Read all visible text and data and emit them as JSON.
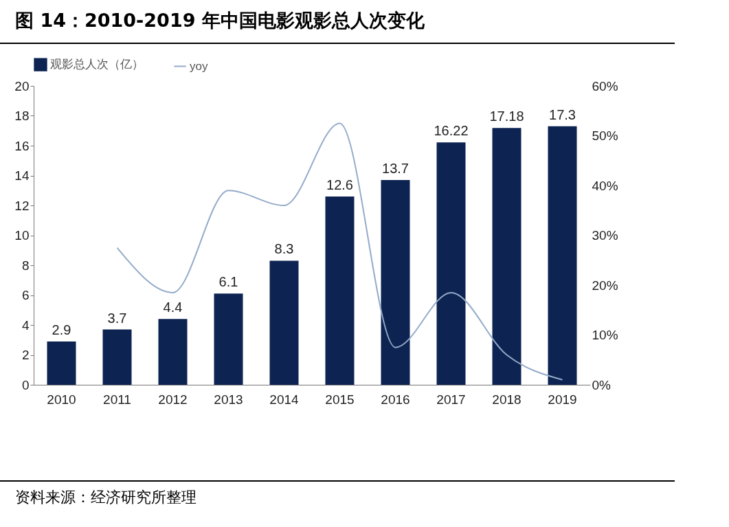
{
  "chart_data": {
    "type": "bar",
    "title": "图 14：2010-2019 年中国电影观影总人次变化",
    "categories": [
      "2010",
      "2011",
      "2012",
      "2013",
      "2014",
      "2015",
      "2016",
      "2017",
      "2018",
      "2019"
    ],
    "series": [
      {
        "name": "观影总人次（亿）",
        "color": "#0d2352",
        "values": [
          2.9,
          3.7,
          4.4,
          6.1,
          8.3,
          12.6,
          13.7,
          16.22,
          17.18,
          17.3
        ],
        "value_labels": [
          "2.9",
          "3.7",
          "4.4",
          "6.1",
          "8.3",
          "12.6",
          "13.7",
          "16.22",
          "17.18",
          "17.3"
        ]
      },
      {
        "name": "yoy",
        "type": "line",
        "axis": "y2",
        "color": "#94abc9",
        "values": [
          null,
          27.5,
          18.5,
          39,
          36,
          52.5,
          7.5,
          18.5,
          6,
          1
        ]
      }
    ],
    "ylim": [
      0,
      20
    ],
    "yticks": [
      0,
      2,
      4,
      6,
      8,
      10,
      12,
      14,
      16,
      18,
      20
    ],
    "y2lim": [
      0,
      60
    ],
    "y2ticks": [
      {
        "value": 0,
        "label": "0%"
      },
      {
        "value": 10,
        "label": "10%"
      },
      {
        "value": 20,
        "label": "20%"
      },
      {
        "value": 30,
        "label": "30%"
      },
      {
        "value": 40,
        "label": "40%"
      },
      {
        "value": 50,
        "label": "50%"
      },
      {
        "value": 60,
        "label": "60%"
      }
    ],
    "legend": "top",
    "grid": false,
    "annotations": [
      "资料来源：经济研究所整理"
    ]
  }
}
